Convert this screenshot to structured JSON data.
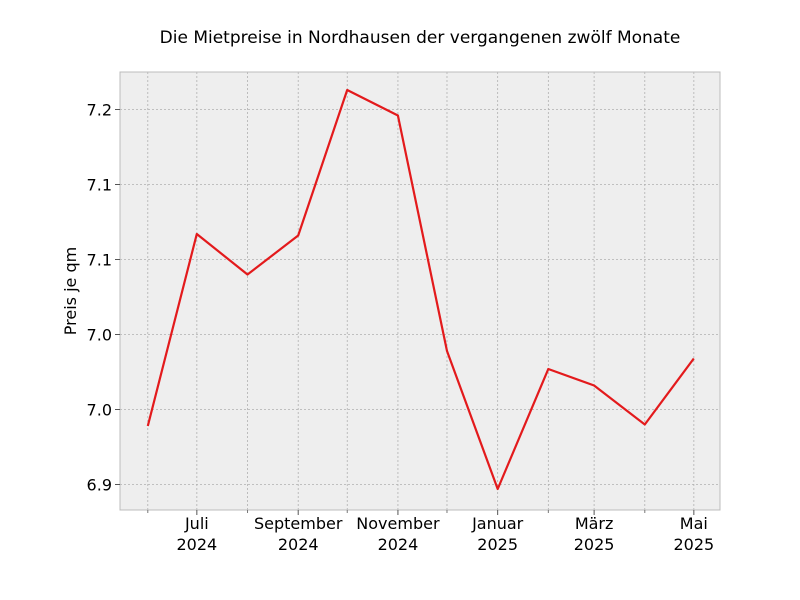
{
  "chart_data": {
    "type": "line",
    "title": "Die Mietpreise in Nordhausen der vergangenen zwölf Monate",
    "xlabel": "",
    "ylabel": "Preis je qm",
    "x": [
      "2024-06",
      "2024-07",
      "2024-08",
      "2024-09",
      "2024-10",
      "2024-11",
      "2024-12",
      "2025-01",
      "2025-02",
      "2025-03",
      "2025-04",
      "2025-05"
    ],
    "x_ticks": [
      {
        "x": "2024-07",
        "month": "Juli",
        "year": "2024"
      },
      {
        "x": "2024-09",
        "month": "September",
        "year": "2024"
      },
      {
        "x": "2024-11",
        "month": "November",
        "year": "2024"
      },
      {
        "x": "2025-01",
        "month": "Januar",
        "year": "2025"
      },
      {
        "x": "2025-03",
        "month": "März",
        "year": "2025"
      },
      {
        "x": "2025-05",
        "month": "Mai",
        "year": "2025"
      }
    ],
    "x_minor_ticks": [
      "2024-06",
      "2024-08",
      "2024-10",
      "2024-12",
      "2025-02",
      "2025-04"
    ],
    "series": [
      {
        "values": [
          6.939,
          7.067,
          7.04,
          7.066,
          7.163,
          7.146,
          6.989,
          6.897,
          6.977,
          6.966,
          6.94,
          6.984
        ],
        "color": "#e31a1c"
      }
    ],
    "y_ticks": [
      {
        "value": 6.9,
        "label": "6.9"
      },
      {
        "value": 6.95,
        "label": "7.0"
      },
      {
        "value": 7.0,
        "label": "7.0"
      },
      {
        "value": 7.05,
        "label": "7.1"
      },
      {
        "value": 7.1,
        "label": "7.1"
      },
      {
        "value": 7.15,
        "label": "7.2"
      }
    ],
    "ylim": [
      6.883,
      7.175
    ],
    "xlim": [
      "2024-05-15",
      "2025-05-17"
    ],
    "grid": true,
    "background": "#eeeeee",
    "grid_color": "#b0b0b0"
  }
}
